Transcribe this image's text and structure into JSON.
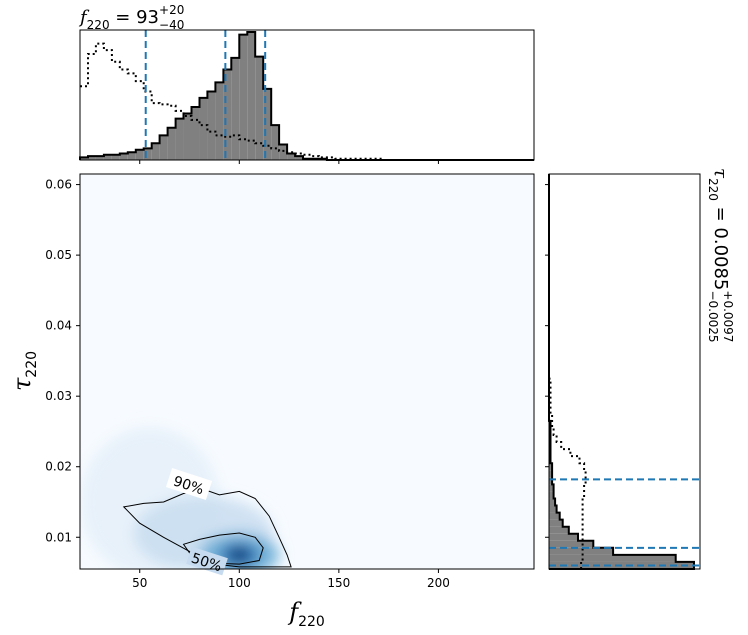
{
  "chart_data": [
    {
      "type": "heatmap",
      "panel": "joint",
      "x_name": "f",
      "x_sub": "220",
      "y_name": "τ",
      "y_sub": "220",
      "xlim": [
        20,
        248
      ],
      "ylim": [
        0.0055,
        0.0615
      ],
      "xticks": [
        50,
        100,
        150,
        200
      ],
      "yticks": [
        0.01,
        0.02,
        0.03,
        0.04,
        0.05,
        0.06
      ],
      "xtick_labels": [
        "50",
        "100",
        "150",
        "200"
      ],
      "ytick_labels": [
        "0.01",
        "0.02",
        "0.03",
        "0.04",
        "0.05",
        "0.06"
      ],
      "density_peak": {
        "x": 100,
        "y": 0.0075
      },
      "contours": [
        {
          "label": "90%",
          "points": [
            [
              42,
              0.0143
            ],
            [
              52,
              0.0148
            ],
            [
              62,
              0.015
            ],
            [
              72,
              0.0162
            ],
            [
              82,
              0.0168
            ],
            [
              90,
              0.016
            ],
            [
              100,
              0.0165
            ],
            [
              108,
              0.0155
            ],
            [
              115,
              0.013
            ],
            [
              120,
              0.01
            ],
            [
              124,
              0.0075
            ],
            [
              126,
              0.0058
            ],
            [
              115,
              0.0058
            ],
            [
              100,
              0.0058
            ],
            [
              88,
              0.0062
            ],
            [
              75,
              0.008
            ],
            [
              62,
              0.01
            ],
            [
              50,
              0.012
            ],
            [
              42,
              0.0143
            ]
          ]
        },
        {
          "label": "50%",
          "points": [
            [
              72,
              0.009
            ],
            [
              80,
              0.0097
            ],
            [
              90,
              0.0103
            ],
            [
              100,
              0.0106
            ],
            [
              108,
              0.01
            ],
            [
              112,
              0.0085
            ],
            [
              110,
              0.0067
            ],
            [
              100,
              0.0062
            ],
            [
              90,
              0.0063
            ],
            [
              82,
              0.007
            ],
            [
              75,
              0.0078
            ],
            [
              72,
              0.009
            ]
          ]
        }
      ]
    },
    {
      "type": "bar",
      "panel": "top-marginal",
      "title_name": "f",
      "title_sub": "220",
      "title_value": "93",
      "title_plus": "+20",
      "title_minus": "−40",
      "bin_start": 20,
      "bin_width": 4,
      "values": [
        0.02,
        0.03,
        0.03,
        0.04,
        0.04,
        0.05,
        0.06,
        0.08,
        0.09,
        0.13,
        0.19,
        0.25,
        0.32,
        0.36,
        0.41,
        0.48,
        0.53,
        0.6,
        0.7,
        0.79,
        0.97,
        0.99,
        0.8,
        0.55,
        0.27,
        0.12,
        0.05,
        0.03,
        0.01,
        0.01,
        0.01,
        0.0,
        0.0,
        0.0,
        0.0,
        0.0,
        0.0,
        0.0,
        0.0,
        0.0,
        0.0,
        0.0,
        0.0,
        0.0,
        0.0,
        0.0,
        0.0,
        0.0,
        0.0,
        0.0,
        0.0,
        0.0,
        0.0,
        0.0,
        0.0,
        0.0,
        0.0
      ],
      "prior_values": [
        0.57,
        0.82,
        0.9,
        0.85,
        0.76,
        0.7,
        0.67,
        0.61,
        0.53,
        0.44,
        0.43,
        0.42,
        0.38,
        0.34,
        0.31,
        0.27,
        0.22,
        0.19,
        0.18,
        0.19,
        0.16,
        0.15,
        0.13,
        0.11,
        0.09,
        0.07,
        0.06,
        0.05,
        0.04,
        0.03,
        0.02,
        0.02,
        0.01,
        0.01,
        0.01,
        0.01,
        0.01,
        0.01,
        0.0,
        0.0,
        0.0,
        0.0,
        0.0,
        0.0,
        0.0,
        0.0,
        0.0,
        0.0,
        0.0,
        0.0,
        0.0,
        0.0,
        0.0,
        0.0,
        0.0,
        0.0,
        0.0
      ],
      "quantile_lines": [
        53,
        93,
        113
      ]
    },
    {
      "type": "bar",
      "panel": "right-marginal",
      "orientation": "horizontal",
      "title_name": "τ",
      "title_sub": "220",
      "title_value": "0.0085",
      "title_plus": "+0.0097",
      "title_minus": "−0.0025",
      "bin_start": 0.0055,
      "bin_width": 0.001,
      "values": [
        0.95,
        0.83,
        0.42,
        0.29,
        0.19,
        0.13,
        0.09,
        0.07,
        0.05,
        0.04,
        0.03,
        0.03,
        0.02,
        0.02,
        0.02,
        0.01,
        0.01,
        0.01,
        0.01,
        0.01,
        0.01,
        0.0,
        0.0,
        0.0,
        0.0,
        0.0,
        0.0,
        0.0,
        0.0,
        0.0,
        0.0,
        0.0,
        0.0,
        0.0,
        0.0,
        0.0,
        0.0,
        0.0,
        0.0,
        0.0,
        0.0,
        0.0,
        0.0,
        0.0,
        0.0,
        0.0,
        0.0,
        0.0,
        0.0,
        0.0,
        0.0,
        0.0,
        0.0,
        0.0,
        0.0,
        0.0
      ],
      "prior_values": [
        0.21,
        0.22,
        0.22,
        0.22,
        0.22,
        0.22,
        0.22,
        0.22,
        0.22,
        0.22,
        0.23,
        0.23,
        0.24,
        0.24,
        0.23,
        0.2,
        0.14,
        0.08,
        0.05,
        0.03,
        0.02,
        0.02,
        0.01,
        0.01,
        0.01,
        0.01,
        0.01,
        0.0,
        0.0,
        0.0,
        0.0,
        0.0,
        0.0,
        0.0,
        0.0,
        0.0,
        0.0,
        0.0,
        0.0,
        0.0,
        0.0,
        0.0,
        0.0,
        0.0,
        0.0,
        0.0,
        0.0,
        0.0,
        0.0,
        0.0,
        0.0,
        0.0,
        0.0,
        0.0,
        0.0,
        0.0
      ],
      "quantile_lines": [
        0.006,
        0.0085,
        0.0182
      ]
    }
  ],
  "colors": {
    "posterior_fill": "#808080",
    "quantile_line": "#1f77b4",
    "density_low": "#f7fbff",
    "density_high": "#08306b"
  }
}
